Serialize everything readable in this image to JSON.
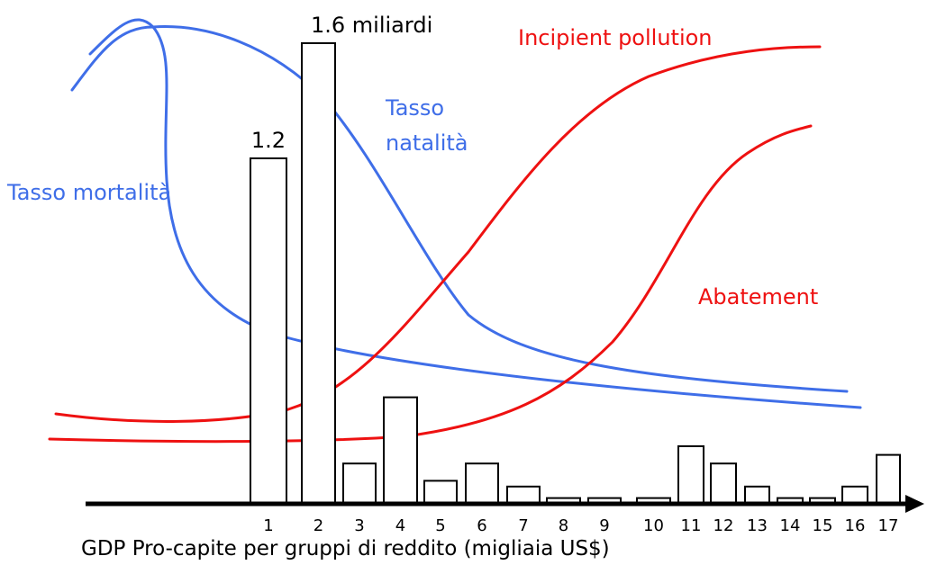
{
  "chart_data": {
    "type": "bar",
    "x_label": "GDP Pro-capite per gruppi di reddito (migliaia US$)",
    "categories": [
      "1",
      "2",
      "3",
      "4",
      "5",
      "6",
      "7",
      "8",
      "9",
      "10",
      "11",
      "12",
      "13",
      "14",
      "15",
      "16",
      "17"
    ],
    "values": [
      1.2,
      1.6,
      0.14,
      0.37,
      0.08,
      0.14,
      0.06,
      0.02,
      0.02,
      0.02,
      0.2,
      0.14,
      0.06,
      0.02,
      0.02,
      0.06,
      0.17
    ],
    "value_labels": [
      "1.2",
      "1.6 miliardi",
      null,
      null,
      null,
      null,
      null,
      null,
      null,
      null,
      null,
      null,
      null,
      null,
      null,
      null,
      null
    ],
    "color": "#ffffff",
    "annotations": [
      {
        "text": "Tasso mortalità",
        "color": "#3f6ee8"
      },
      {
        "text": "Tasso",
        "color": "#3f6ee8"
      },
      {
        "text": "natalità",
        "color": "#3f6ee8"
      },
      {
        "text": "Incipient pollution",
        "color": "#ee1111"
      },
      {
        "text": "Abatement",
        "color": "#ee1111"
      }
    ]
  }
}
